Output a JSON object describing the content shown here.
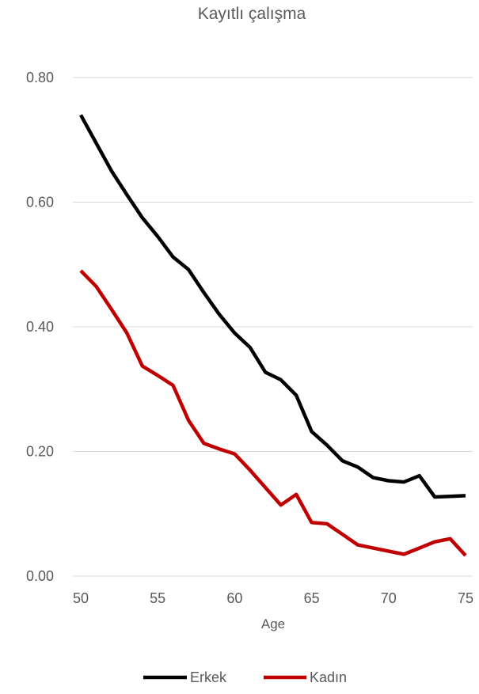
{
  "chart_data": {
    "type": "line",
    "title": "Kayıtlı çalışma",
    "xlabel": "Age",
    "ylabel": "",
    "xlim": [
      50,
      75
    ],
    "ylim": [
      0,
      0.8
    ],
    "x_ticks": [
      50,
      55,
      60,
      65,
      70,
      75
    ],
    "y_ticks": [
      0.0,
      0.2,
      0.4,
      0.6,
      0.8
    ],
    "y_tick_labels": [
      "0.00",
      "0.20",
      "0.40",
      "0.60",
      "0.80"
    ],
    "grid": true,
    "legend_position": "bottom",
    "x": [
      50,
      51,
      52,
      53,
      54,
      55,
      56,
      57,
      58,
      59,
      60,
      61,
      62,
      63,
      64,
      65,
      66,
      67,
      68,
      69,
      70,
      71,
      72,
      73,
      74,
      75
    ],
    "series": [
      {
        "name": "Erkek",
        "color": "#000000",
        "values": [
          0.74,
          0.695,
          0.65,
          0.612,
          0.575,
          0.545,
          0.512,
          0.492,
          0.455,
          0.42,
          0.39,
          0.367,
          0.327,
          0.315,
          0.29,
          0.232,
          0.21,
          0.185,
          0.175,
          0.158,
          0.153,
          0.151,
          0.161,
          0.127,
          0.128,
          0.129
        ]
      },
      {
        "name": "Kadın",
        "color": "#c00000",
        "values": [
          0.49,
          0.465,
          0.428,
          0.39,
          0.337,
          0.322,
          0.306,
          0.25,
          0.213,
          0.204,
          0.196,
          0.17,
          0.142,
          0.114,
          0.131,
          0.086,
          0.084,
          0.067,
          0.05,
          0.045,
          0.04,
          0.035,
          0.045,
          0.055,
          0.06,
          0.033
        ]
      }
    ]
  }
}
